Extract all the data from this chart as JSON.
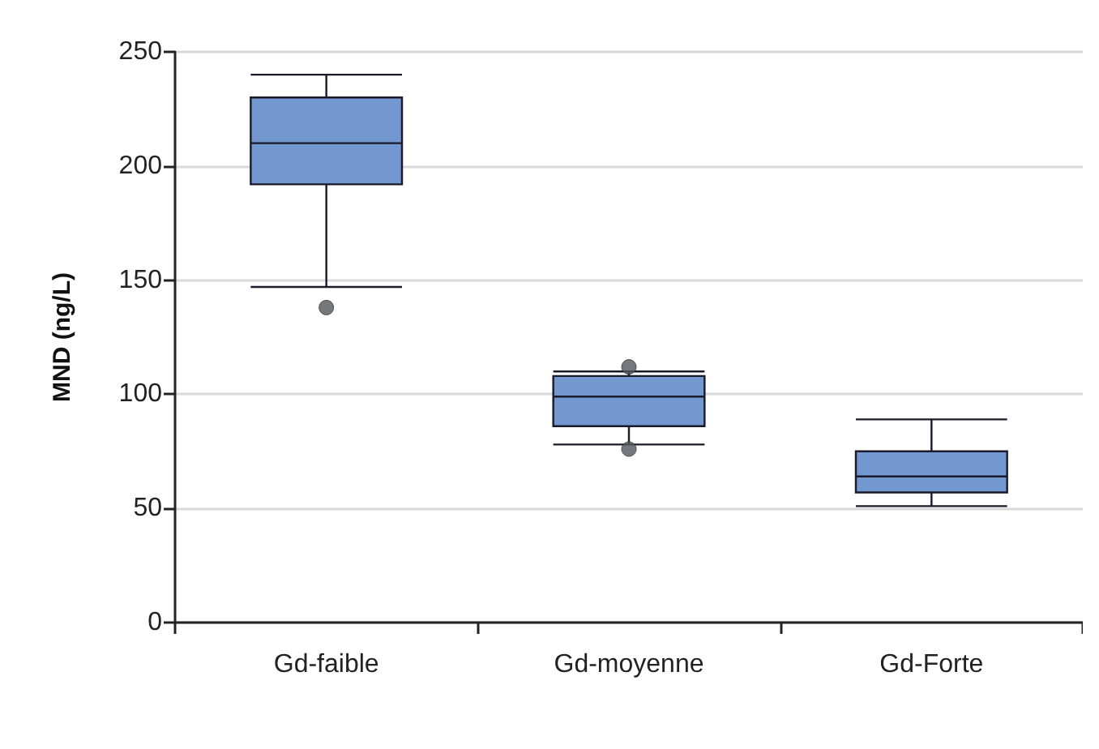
{
  "chart_data": {
    "type": "box",
    "ylabel": "MND (ng/L)",
    "categories": [
      "Gd-faible",
      "Gd-moyenne",
      "Gd-Forte"
    ],
    "color": "#7397cf",
    "boxes": [
      {
        "low": 147,
        "q1": 192,
        "median": 210,
        "q3": 230,
        "high": 240,
        "outliers": [
          138
        ]
      },
      {
        "low": 78,
        "q1": 86,
        "median": 99,
        "q3": 108,
        "high": 110,
        "outliers": [
          112,
          76
        ]
      },
      {
        "low": 51,
        "q1": 57,
        "median": 64,
        "q3": 75,
        "high": 89
      }
    ],
    "ylim": [
      0,
      250
    ],
    "yticks": [
      0,
      50,
      100,
      150,
      200,
      250
    ],
    "grid": "y",
    "marker": "circle"
  }
}
